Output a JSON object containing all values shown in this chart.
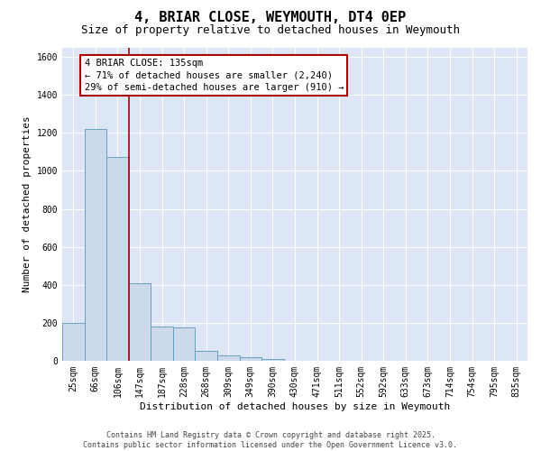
{
  "title": "4, BRIAR CLOSE, WEYMOUTH, DT4 0EP",
  "subtitle": "Size of property relative to detached houses in Weymouth",
  "xlabel": "Distribution of detached houses by size in Weymouth",
  "ylabel": "Number of detached properties",
  "categories": [
    "25sqm",
    "66sqm",
    "106sqm",
    "147sqm",
    "187sqm",
    "228sqm",
    "268sqm",
    "309sqm",
    "349sqm",
    "390sqm",
    "430sqm",
    "471sqm",
    "511sqm",
    "552sqm",
    "592sqm",
    "633sqm",
    "673sqm",
    "714sqm",
    "754sqm",
    "795sqm",
    "835sqm"
  ],
  "values": [
    200,
    1220,
    1075,
    410,
    180,
    175,
    50,
    30,
    20,
    10,
    0,
    0,
    0,
    0,
    0,
    0,
    0,
    0,
    0,
    0,
    0
  ],
  "bar_color": "#ccd9ea",
  "bar_edge_color": "#6a9fc0",
  "vertical_line_color": "#aa0000",
  "annotation_line1": "4 BRIAR CLOSE: 135sqm",
  "annotation_line2": "← 71% of detached houses are smaller (2,240)",
  "annotation_line3": "29% of semi-detached houses are larger (910) →",
  "annotation_box_edgecolor": "#aa0000",
  "annotation_box_facecolor": "#ffffff",
  "ylim": [
    0,
    1650
  ],
  "yticks": [
    0,
    200,
    400,
    600,
    800,
    1000,
    1200,
    1400,
    1600
  ],
  "background_color": "#dce6f5",
  "grid_color": "#ffffff",
  "footer_text": "Contains HM Land Registry data © Crown copyright and database right 2025.\nContains public sector information licensed under the Open Government Licence v3.0.",
  "title_fontsize": 11,
  "subtitle_fontsize": 9,
  "axis_label_fontsize": 8,
  "tick_fontsize": 7,
  "annotation_fontsize": 7.5,
  "footer_fontsize": 6
}
